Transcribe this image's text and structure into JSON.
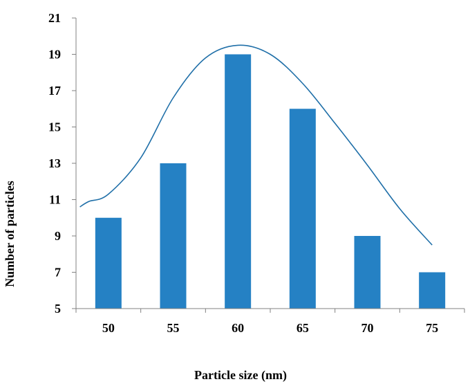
{
  "chart_data": {
    "type": "bar",
    "title": "",
    "xlabel": "Particle size (nm)",
    "ylabel": "Number of particles",
    "categories": [
      "50",
      "55",
      "60",
      "65",
      "70",
      "75"
    ],
    "values": [
      10,
      13,
      19,
      16,
      9,
      7
    ],
    "ylim": [
      5,
      21
    ],
    "yticks": [
      5,
      7,
      9,
      11,
      13,
      15,
      17,
      19,
      21
    ],
    "grid": false,
    "legend": "none",
    "bar_color": "#2581c4",
    "curve": {
      "type": "line",
      "color": "#1f6fa8",
      "x": [
        47.8,
        48.5,
        50,
        52.5,
        55,
        57.5,
        60,
        62.5,
        65,
        67.5,
        70,
        72.5,
        75
      ],
      "y": [
        10.6,
        10.9,
        11.3,
        13.3,
        16.6,
        18.8,
        19.5,
        19.0,
        17.4,
        15.2,
        12.9,
        10.5,
        8.5
      ]
    }
  }
}
